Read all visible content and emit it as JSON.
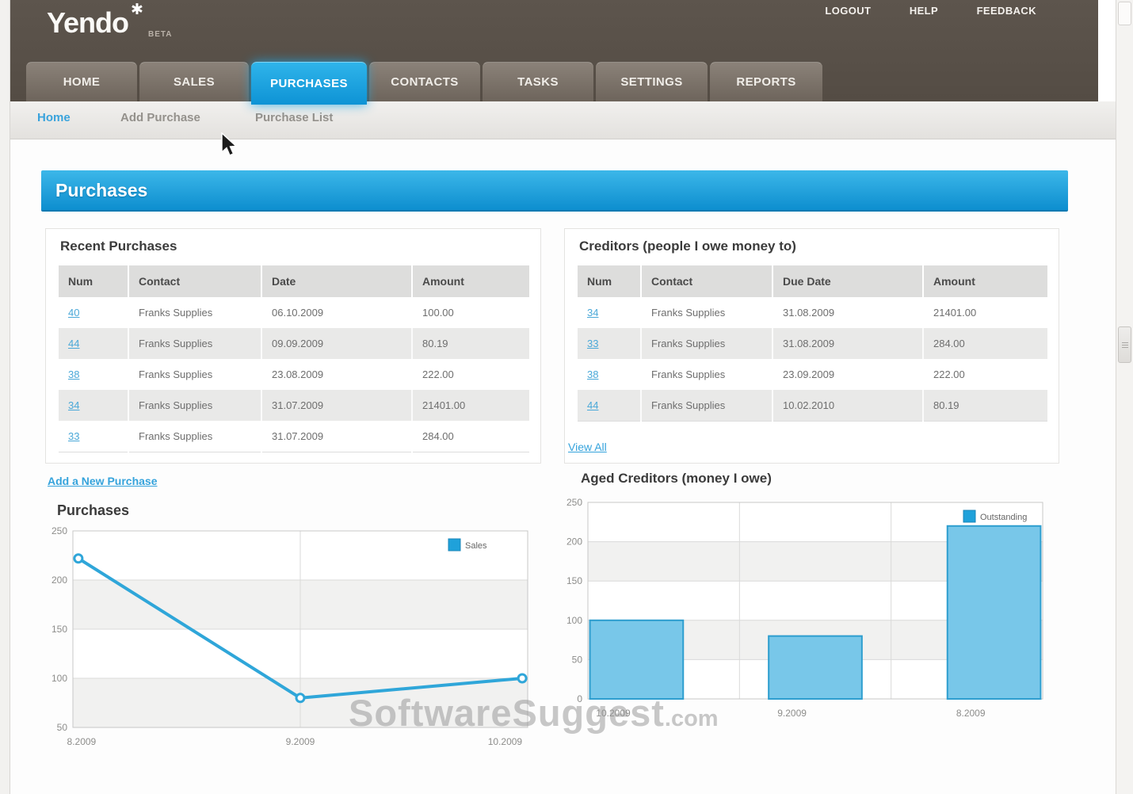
{
  "brand": {
    "name": "Yendo",
    "badge": "BETA"
  },
  "topbar": {
    "links": [
      "LOGOUT",
      "HELP",
      "FEEDBACK"
    ]
  },
  "nav": {
    "tabs": [
      "HOME",
      "SALES",
      "PURCHASES",
      "CONTACTS",
      "TASKS",
      "SETTINGS",
      "REPORTS"
    ],
    "active": "PURCHASES"
  },
  "subnav": {
    "items": [
      "Home",
      "Add Purchase",
      "Purchase List"
    ],
    "active": "Home"
  },
  "banner": {
    "title": "Purchases"
  },
  "recent_purchases": {
    "title": "Recent Purchases",
    "columns": [
      "Num",
      "Contact",
      "Date",
      "Amount"
    ],
    "rows": [
      [
        "40",
        "Franks Supplies",
        "06.10.2009",
        "100.00"
      ],
      [
        "44",
        "Franks Supplies",
        "09.09.2009",
        "80.19"
      ],
      [
        "38",
        "Franks Supplies",
        "23.08.2009",
        "222.00"
      ],
      [
        "34",
        "Franks Supplies",
        "31.07.2009",
        "21401.00"
      ],
      [
        "33",
        "Franks Supplies",
        "31.07.2009",
        "284.00"
      ]
    ],
    "link": "Add a New Purchase"
  },
  "creditors": {
    "title": "Creditors (people I owe money to)",
    "columns": [
      "Num",
      "Contact",
      "Due Date",
      "Amount"
    ],
    "rows": [
      [
        "34",
        "Franks Supplies",
        "31.08.2009",
        "21401.00"
      ],
      [
        "33",
        "Franks Supplies",
        "31.08.2009",
        "284.00"
      ],
      [
        "38",
        "Franks Supplies",
        "23.09.2009",
        "222.00"
      ],
      [
        "44",
        "Franks Supplies",
        "10.02.2010",
        "80.19"
      ]
    ],
    "link": "View All"
  },
  "chart_data": [
    {
      "type": "line",
      "title": "Purchases",
      "x": [
        "8.2009",
        "9.2009",
        "10.2009"
      ],
      "series": [
        {
          "name": "Sales",
          "values": [
            222,
            80,
            100
          ]
        }
      ],
      "ylim": [
        50,
        250
      ],
      "yticks": [
        50,
        100,
        150,
        200,
        250
      ],
      "grid": true,
      "legend_position": "top-right",
      "accent": "#1fa1da",
      "color": "#2fa6d9"
    },
    {
      "type": "bar",
      "title": "Aged Creditors (money I owe)",
      "categories": [
        "10.2009",
        "9.2009",
        "8.2009"
      ],
      "series": [
        {
          "name": "Outstanding",
          "values": [
            100,
            80,
            220
          ]
        }
      ],
      "ylim": [
        0,
        250
      ],
      "yticks": [
        0,
        50,
        100,
        150,
        200,
        250
      ],
      "grid": true,
      "legend_position": "top-right",
      "accent": "#1fa1da",
      "color": "#78c7e9",
      "stroke": "#2e9ecf"
    }
  ],
  "watermark": {
    "text": "SoftwareSuggest",
    "suffix": ".com"
  },
  "colors": {
    "accent_blue": "#179fdd",
    "header_brown": "#57504a",
    "banner_top": "#3cb7e9",
    "banner_bottom": "#0d8ecf",
    "link_blue": "#3ba6dc"
  }
}
